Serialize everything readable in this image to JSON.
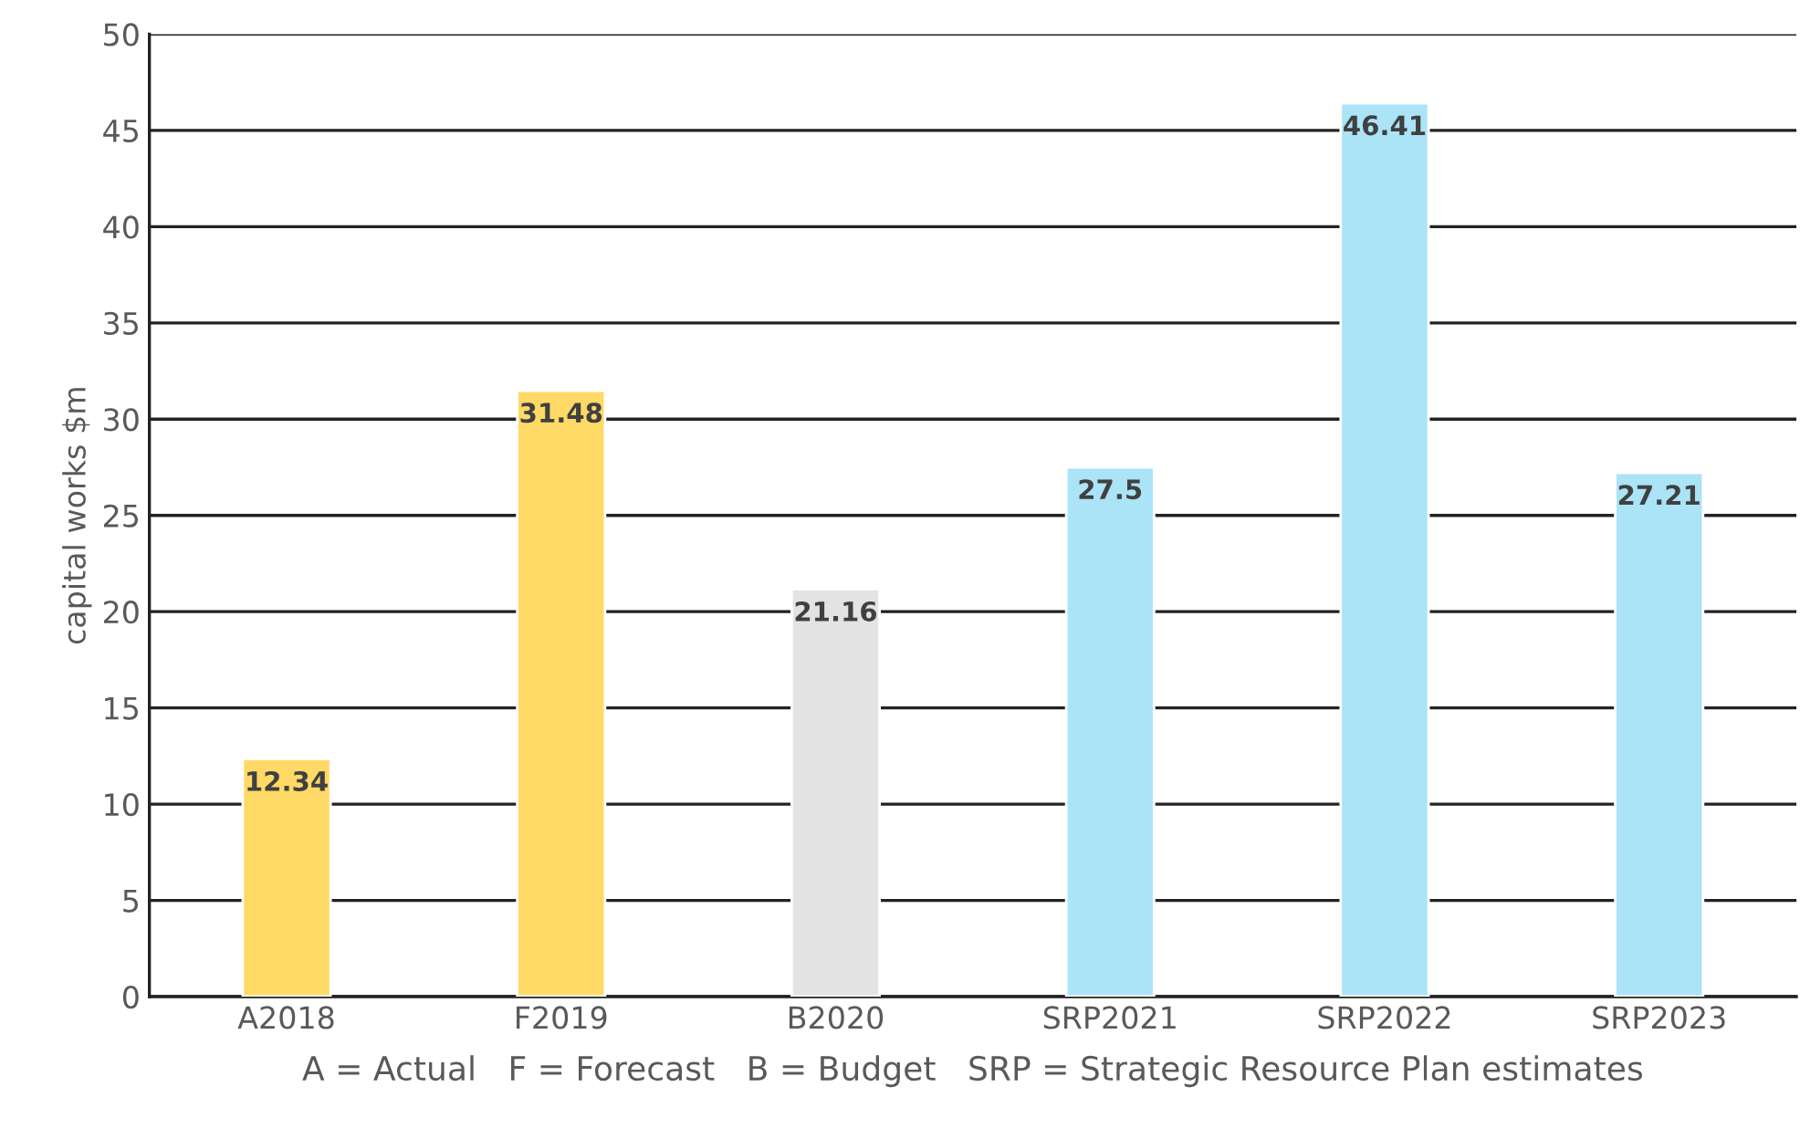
{
  "chart_data": {
    "type": "bar",
    "categories": [
      "A2018",
      "F2019",
      "B2020",
      "SRP2021",
      "SRP2022",
      "SRP2023"
    ],
    "values": [
      12.34,
      31.48,
      21.16,
      27.5,
      46.41,
      27.21
    ],
    "colors": [
      "#ffd966",
      "#ffd966",
      "#e3e3e3",
      "#abe3f7",
      "#abe3f7",
      "#abe3f7"
    ],
    "ylabel": "capital works $m",
    "xlabel": "A = Actual   F = Forecast   B = Budget   SRP = Strategic Resource Plan estimates",
    "ylim": [
      0,
      50
    ],
    "yticks": [
      0,
      5,
      10,
      15,
      20,
      25,
      30,
      35,
      40,
      45,
      50
    ],
    "grid": "y",
    "data_labels": true
  }
}
